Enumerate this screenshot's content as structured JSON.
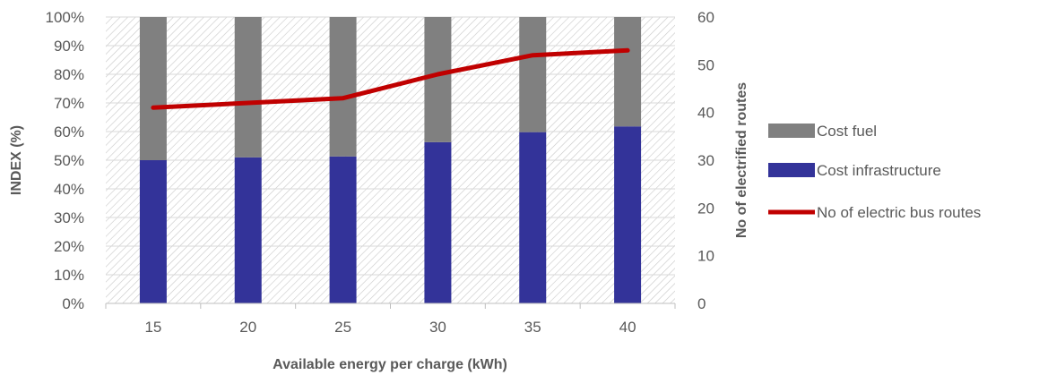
{
  "chart_data": {
    "type": "bar",
    "stacked": true,
    "categories": [
      "15",
      "20",
      "25",
      "30",
      "35",
      "40"
    ],
    "series": [
      {
        "name": "Cost infrastructure",
        "kind": "bar",
        "axis": "left",
        "color": "#333399",
        "values": [
          50,
          51,
          51.3,
          56.3,
          59.8,
          61.8
        ]
      },
      {
        "name": "Cost fuel",
        "kind": "bar",
        "axis": "left",
        "color": "#808080",
        "values": [
          50,
          49,
          48.7,
          43.7,
          40.2,
          38.2
        ]
      },
      {
        "name": "No of electric bus routes",
        "kind": "line",
        "axis": "right",
        "color": "#c00000",
        "values": [
          41,
          42,
          43,
          48,
          52,
          53
        ]
      }
    ],
    "xlabel": "Available energy per charge (kWh)",
    "ylabel": "INDEX (%)",
    "y2label": "No of electrified routes",
    "ylim": [
      0,
      100
    ],
    "y2lim": [
      0,
      60
    ],
    "yticks": [
      "0%",
      "10%",
      "20%",
      "30%",
      "40%",
      "50%",
      "60%",
      "70%",
      "80%",
      "90%",
      "100%"
    ],
    "y2ticks": [
      "0",
      "10",
      "20",
      "30",
      "40",
      "50",
      "60"
    ],
    "legend_position": "right",
    "legend": [
      "Cost fuel",
      "Cost infrastructure",
      "No of electric bus routes"
    ],
    "plot_background": "hatched"
  }
}
